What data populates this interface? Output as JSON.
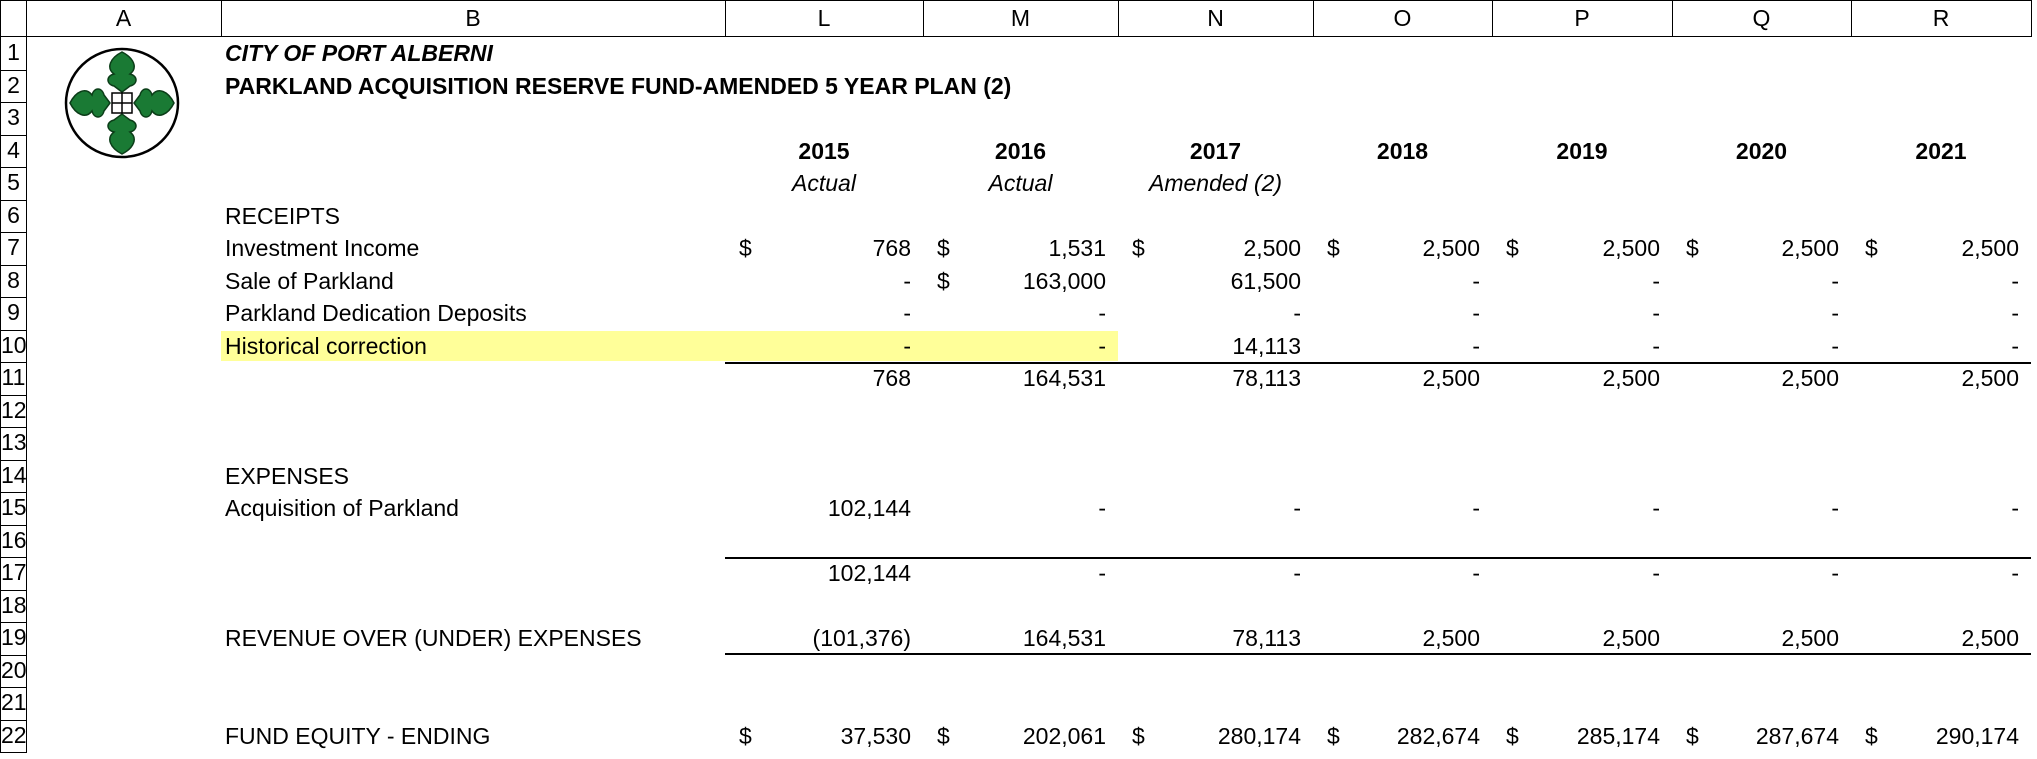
{
  "sheet": {
    "columns": [
      "A",
      "B",
      "L",
      "M",
      "N",
      "O",
      "P",
      "Q",
      "R"
    ],
    "rows": [
      {
        "number": "1",
        "label": "CITY OF PORT ALBERNI"
      },
      {
        "number": "2",
        "label": "PARKLAND ACQUISITION RESERVE FUND-AMENDED 5 YEAR PLAN (2)"
      },
      {
        "number": "3"
      },
      {
        "number": "4",
        "cells": [
          "2015",
          "2016",
          "2017",
          "2018",
          "2019",
          "2020",
          "2021"
        ]
      },
      {
        "number": "5",
        "cells": [
          "Actual",
          "Actual",
          "Amended (2)"
        ]
      },
      {
        "number": "6",
        "label": "RECEIPTS"
      },
      {
        "number": "7",
        "label": "Investment Income",
        "cells": [
          {
            "currency": "$",
            "value": "768"
          },
          {
            "currency": "$",
            "value": "1,531"
          },
          {
            "currency": "$",
            "value": "2,500"
          },
          {
            "currency": "$",
            "value": "2,500"
          },
          {
            "currency": "$",
            "value": "2,500"
          },
          {
            "currency": "$",
            "value": "2,500"
          },
          {
            "currency": "$",
            "value": "2,500"
          }
        ]
      },
      {
        "number": "8",
        "label": "Sale of Parkland",
        "cells": [
          "-",
          {
            "currency": "$",
            "value": "163,000"
          },
          "61,500",
          "-",
          "-",
          "-",
          "-"
        ]
      },
      {
        "number": "9",
        "label": "Parkland Dedication Deposits",
        "cells": [
          "-",
          "-",
          "-",
          "-",
          "-",
          "-",
          "-"
        ]
      },
      {
        "number": "10",
        "label": "Historical correction",
        "cells": [
          "-",
          "-",
          "14,113",
          "-",
          "-",
          "-",
          "-"
        ]
      },
      {
        "number": "11",
        "cells": [
          "768",
          "164,531",
          "78,113",
          "2,500",
          "2,500",
          "2,500",
          "2,500"
        ]
      },
      {
        "number": "12"
      },
      {
        "number": "13"
      },
      {
        "number": "14",
        "label": "EXPENSES"
      },
      {
        "number": "15",
        "label": "Acquisition of Parkland",
        "cells": [
          "102,144",
          "-",
          "-",
          "-",
          "-",
          "-",
          "-"
        ]
      },
      {
        "number": "16"
      },
      {
        "number": "17",
        "cells": [
          "102,144",
          "-",
          "-",
          "-",
          "-",
          "-",
          "-"
        ]
      },
      {
        "number": "18"
      },
      {
        "number": "19",
        "label": "REVENUE OVER (UNDER) EXPENSES",
        "cells": [
          "(101,376)",
          "164,531",
          "78,113",
          "2,500",
          "2,500",
          "2,500",
          "2,500"
        ]
      },
      {
        "number": "20"
      },
      {
        "number": "21"
      },
      {
        "number": "22",
        "label": "FUND EQUITY - ENDING",
        "cells": [
          {
            "currency": "$",
            "value": "37,530"
          },
          {
            "currency": "$",
            "value": "202,061"
          },
          {
            "currency": "$",
            "value": "280,174"
          },
          {
            "currency": "$",
            "value": "282,674"
          },
          {
            "currency": "$",
            "value": "285,174"
          },
          {
            "currency": "$",
            "value": "287,674"
          },
          {
            "currency": "$",
            "value": "290,174"
          }
        ]
      }
    ]
  }
}
